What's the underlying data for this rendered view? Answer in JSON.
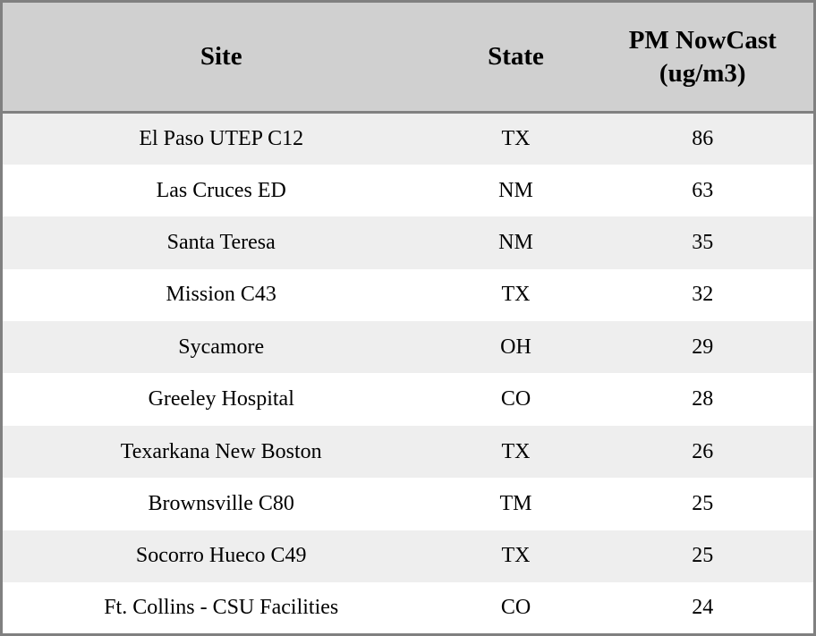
{
  "chart_data": {
    "type": "table",
    "columns": [
      "Site",
      "State",
      "PM NowCast (ug/m3)"
    ],
    "rows": [
      {
        "site": "El Paso UTEP C12",
        "state": "TX",
        "pm_nowcast": 86
      },
      {
        "site": "Las Cruces ED",
        "state": "NM",
        "pm_nowcast": 63
      },
      {
        "site": "Santa Teresa",
        "state": "NM",
        "pm_nowcast": 35
      },
      {
        "site": "Mission C43",
        "state": "TX",
        "pm_nowcast": 32
      },
      {
        "site": "Sycamore",
        "state": "OH",
        "pm_nowcast": 29
      },
      {
        "site": "Greeley Hospital",
        "state": "CO",
        "pm_nowcast": 28
      },
      {
        "site": "Texarkana New Boston",
        "state": "TX",
        "pm_nowcast": 26
      },
      {
        "site": "Brownsville C80",
        "state": "TM",
        "pm_nowcast": 25
      },
      {
        "site": "Socorro Hueco C49",
        "state": "TX",
        "pm_nowcast": 25
      },
      {
        "site": "Ft. Collins - CSU Facilities",
        "state": "CO",
        "pm_nowcast": 24
      }
    ]
  },
  "colors": {
    "header_bg": "#d0d0d0",
    "row_alt_bg": "#eeeeee",
    "row_bg": "#ffffff",
    "border": "#808080",
    "text": "#000000"
  }
}
